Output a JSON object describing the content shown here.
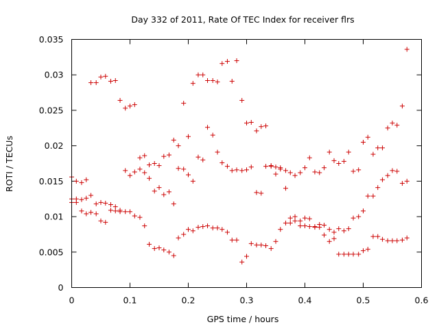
{
  "chart_data": {
    "type": "scatter",
    "title": "Day 332 of 2011, Rate Of TEC Index for receiver flrs",
    "xlabel": "GPS time / hours",
    "ylabel": "ROTI / TECUs",
    "xlim": [
      0,
      0.6
    ],
    "ylim": [
      0,
      0.035
    ],
    "xticks": [
      0,
      0.1,
      0.2,
      0.3,
      0.4,
      0.5,
      0.6
    ],
    "xtick_labels": [
      "0",
      "0.1",
      "0.2",
      "0.3",
      "0.4",
      "0.5",
      "0.6"
    ],
    "yticks": [
      0,
      0.005,
      0.01,
      0.015,
      0.02,
      0.025,
      0.03,
      0.035
    ],
    "ytick_labels": [
      "0",
      "0.005",
      "0.01",
      "0.015",
      "0.02",
      "0.025",
      "0.03",
      "0.035"
    ],
    "grid": false,
    "marker": "+",
    "color": "#cc0000",
    "points": [
      [
        0.0,
        0.0156
      ],
      [
        0.008,
        0.015
      ],
      [
        0.017,
        0.0148
      ],
      [
        0.025,
        0.0152
      ],
      [
        0.033,
        0.0289
      ],
      [
        0.042,
        0.0289
      ],
      [
        0.05,
        0.0297
      ],
      [
        0.058,
        0.0298
      ],
      [
        0.067,
        0.0291
      ],
      [
        0.075,
        0.0292
      ],
      [
        0.083,
        0.0264
      ],
      [
        0.092,
        0.0253
      ],
      [
        0.1,
        0.0256
      ],
      [
        0.108,
        0.0258
      ],
      [
        0.117,
        0.0183
      ],
      [
        0.125,
        0.0186
      ],
      [
        0.133,
        0.0173
      ],
      [
        0.142,
        0.0175
      ],
      [
        0.15,
        0.0172
      ],
      [
        0.158,
        0.0185
      ],
      [
        0.167,
        0.0187
      ],
      [
        0.175,
        0.0208
      ],
      [
        0.183,
        0.02
      ],
      [
        0.192,
        0.026
      ],
      [
        0.2,
        0.0213
      ],
      [
        0.208,
        0.0288
      ],
      [
        0.217,
        0.03
      ],
      [
        0.225,
        0.03
      ],
      [
        0.233,
        0.0292
      ],
      [
        0.242,
        0.0292
      ],
      [
        0.25,
        0.029
      ],
      [
        0.258,
        0.0316
      ],
      [
        0.267,
        0.0319
      ],
      [
        0.275,
        0.0291
      ],
      [
        0.283,
        0.032
      ],
      [
        0.292,
        0.0264
      ],
      [
        0.3,
        0.0232
      ],
      [
        0.308,
        0.0233
      ],
      [
        0.317,
        0.0221
      ],
      [
        0.325,
        0.0227
      ],
      [
        0.333,
        0.0228
      ],
      [
        0.342,
        0.0171
      ],
      [
        0.35,
        0.017
      ],
      [
        0.358,
        0.0167
      ],
      [
        0.367,
        0.0165
      ],
      [
        0.375,
        0.0162
      ],
      [
        0.383,
        0.0158
      ],
      [
        0.392,
        0.0162
      ],
      [
        0.4,
        0.0169
      ],
      [
        0.408,
        0.0183
      ],
      [
        0.417,
        0.0163
      ],
      [
        0.425,
        0.0162
      ],
      [
        0.433,
        0.0169
      ],
      [
        0.442,
        0.0191
      ],
      [
        0.45,
        0.0179
      ],
      [
        0.458,
        0.0175
      ],
      [
        0.467,
        0.0178
      ],
      [
        0.475,
        0.0191
      ],
      [
        0.483,
        0.0164
      ],
      [
        0.492,
        0.0166
      ],
      [
        0.5,
        0.0205
      ],
      [
        0.508,
        0.0212
      ],
      [
        0.517,
        0.0188
      ],
      [
        0.525,
        0.0197
      ],
      [
        0.533,
        0.0197
      ],
      [
        0.542,
        0.0225
      ],
      [
        0.55,
        0.0232
      ],
      [
        0.558,
        0.0229
      ],
      [
        0.567,
        0.0256
      ],
      [
        0.575,
        0.0336
      ],
      [
        0.0,
        0.0125
      ],
      [
        0.008,
        0.0125
      ],
      [
        0.017,
        0.0124
      ],
      [
        0.025,
        0.0126
      ],
      [
        0.033,
        0.013
      ],
      [
        0.042,
        0.0118
      ],
      [
        0.05,
        0.012
      ],
      [
        0.058,
        0.0119
      ],
      [
        0.067,
        0.0117
      ],
      [
        0.075,
        0.0114
      ],
      [
        0.083,
        0.0109
      ],
      [
        0.092,
        0.0165
      ],
      [
        0.1,
        0.0158
      ],
      [
        0.108,
        0.0163
      ],
      [
        0.117,
        0.0167
      ],
      [
        0.125,
        0.0162
      ],
      [
        0.133,
        0.0154
      ],
      [
        0.142,
        0.0136
      ],
      [
        0.15,
        0.0141
      ],
      [
        0.158,
        0.0131
      ],
      [
        0.167,
        0.0135
      ],
      [
        0.175,
        0.0118
      ],
      [
        0.183,
        0.0168
      ],
      [
        0.192,
        0.0167
      ],
      [
        0.2,
        0.0159
      ],
      [
        0.208,
        0.015
      ],
      [
        0.217,
        0.0184
      ],
      [
        0.225,
        0.018
      ],
      [
        0.233,
        0.0226
      ],
      [
        0.242,
        0.0215
      ],
      [
        0.25,
        0.0191
      ],
      [
        0.258,
        0.0176
      ],
      [
        0.267,
        0.0171
      ],
      [
        0.275,
        0.0165
      ],
      [
        0.283,
        0.0166
      ],
      [
        0.292,
        0.0165
      ],
      [
        0.3,
        0.0166
      ],
      [
        0.308,
        0.017
      ],
      [
        0.317,
        0.0134
      ],
      [
        0.325,
        0.0133
      ],
      [
        0.333,
        0.0171
      ],
      [
        0.342,
        0.0172
      ],
      [
        0.35,
        0.016
      ],
      [
        0.358,
        0.0169
      ],
      [
        0.367,
        0.014
      ],
      [
        0.375,
        0.0098
      ],
      [
        0.383,
        0.01
      ],
      [
        0.392,
        0.0094
      ],
      [
        0.4,
        0.0098
      ],
      [
        0.408,
        0.0097
      ],
      [
        0.417,
        0.0086
      ],
      [
        0.425,
        0.0085
      ],
      [
        0.433,
        0.0088
      ],
      [
        0.442,
        0.0082
      ],
      [
        0.45,
        0.0078
      ],
      [
        0.458,
        0.0083
      ],
      [
        0.467,
        0.008
      ],
      [
        0.475,
        0.0083
      ],
      [
        0.483,
        0.0098
      ],
      [
        0.492,
        0.01
      ],
      [
        0.5,
        0.0108
      ],
      [
        0.508,
        0.0129
      ],
      [
        0.517,
        0.0129
      ],
      [
        0.525,
        0.0141
      ],
      [
        0.533,
        0.0152
      ],
      [
        0.542,
        0.0158
      ],
      [
        0.55,
        0.0165
      ],
      [
        0.558,
        0.0164
      ],
      [
        0.567,
        0.0147
      ],
      [
        0.575,
        0.015
      ],
      [
        0.0,
        0.012
      ],
      [
        0.008,
        0.012
      ],
      [
        0.017,
        0.0108
      ],
      [
        0.025,
        0.0104
      ],
      [
        0.033,
        0.0106
      ],
      [
        0.042,
        0.0104
      ],
      [
        0.05,
        0.0094
      ],
      [
        0.058,
        0.0092
      ],
      [
        0.067,
        0.0109
      ],
      [
        0.075,
        0.0108
      ],
      [
        0.083,
        0.0107
      ],
      [
        0.092,
        0.0107
      ],
      [
        0.1,
        0.0107
      ],
      [
        0.108,
        0.0101
      ],
      [
        0.117,
        0.0099
      ],
      [
        0.125,
        0.0087
      ],
      [
        0.133,
        0.0061
      ],
      [
        0.142,
        0.0055
      ],
      [
        0.15,
        0.0056
      ],
      [
        0.158,
        0.0053
      ],
      [
        0.167,
        0.005
      ],
      [
        0.175,
        0.0045
      ],
      [
        0.183,
        0.007
      ],
      [
        0.192,
        0.0075
      ],
      [
        0.2,
        0.0082
      ],
      [
        0.208,
        0.008
      ],
      [
        0.217,
        0.0085
      ],
      [
        0.225,
        0.0086
      ],
      [
        0.233,
        0.0087
      ],
      [
        0.242,
        0.0084
      ],
      [
        0.25,
        0.0084
      ],
      [
        0.258,
        0.0082
      ],
      [
        0.267,
        0.0078
      ],
      [
        0.275,
        0.0067
      ],
      [
        0.283,
        0.0067
      ],
      [
        0.292,
        0.0036
      ],
      [
        0.3,
        0.0044
      ],
      [
        0.308,
        0.0062
      ],
      [
        0.317,
        0.006
      ],
      [
        0.325,
        0.006
      ],
      [
        0.333,
        0.0059
      ],
      [
        0.342,
        0.0055
      ],
      [
        0.35,
        0.0065
      ],
      [
        0.358,
        0.0082
      ],
      [
        0.367,
        0.0091
      ],
      [
        0.375,
        0.0091
      ],
      [
        0.383,
        0.0094
      ],
      [
        0.392,
        0.0087
      ],
      [
        0.4,
        0.0087
      ],
      [
        0.408,
        0.0086
      ],
      [
        0.417,
        0.0085
      ],
      [
        0.425,
        0.0089
      ],
      [
        0.433,
        0.0074
      ],
      [
        0.442,
        0.0065
      ],
      [
        0.45,
        0.0069
      ],
      [
        0.458,
        0.0047
      ],
      [
        0.467,
        0.0047
      ],
      [
        0.475,
        0.0047
      ],
      [
        0.483,
        0.0047
      ],
      [
        0.492,
        0.0047
      ],
      [
        0.5,
        0.0052
      ],
      [
        0.508,
        0.0054
      ],
      [
        0.517,
        0.0072
      ],
      [
        0.525,
        0.0072
      ],
      [
        0.533,
        0.0068
      ],
      [
        0.542,
        0.0066
      ],
      [
        0.55,
        0.0066
      ],
      [
        0.558,
        0.0066
      ],
      [
        0.567,
        0.0067
      ],
      [
        0.575,
        0.007
      ]
    ]
  }
}
